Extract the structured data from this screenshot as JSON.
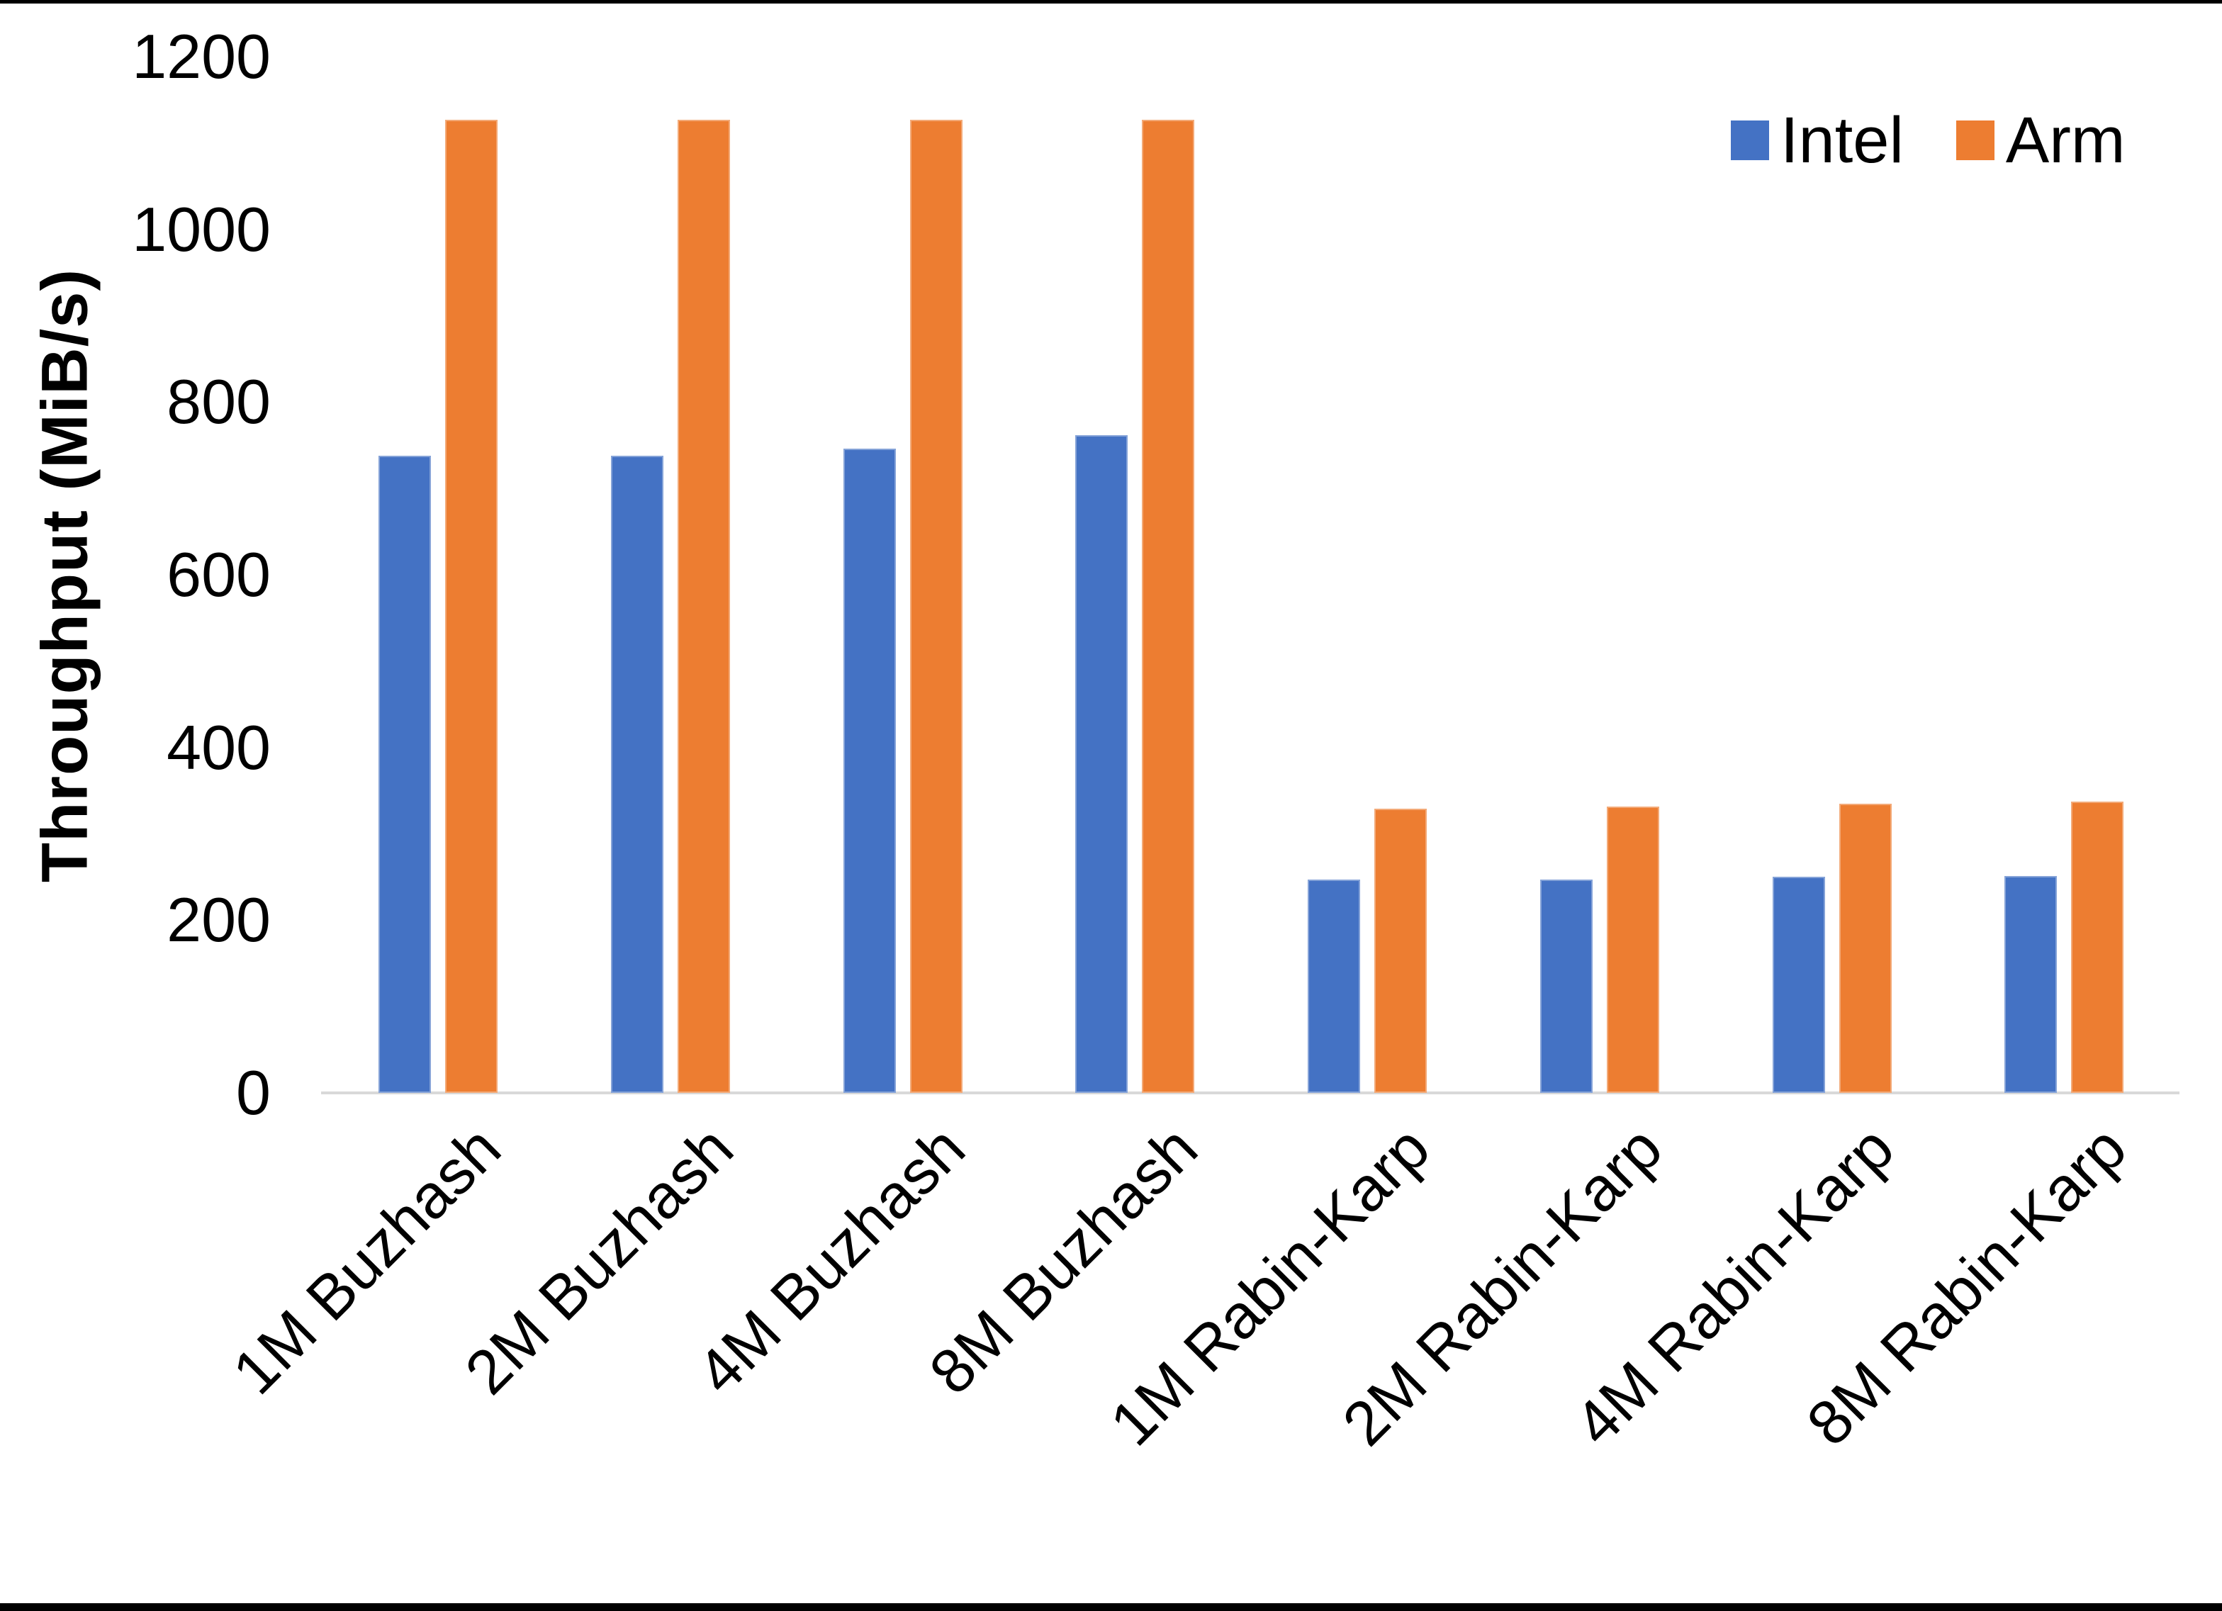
{
  "chart_data": {
    "type": "bar",
    "title": "",
    "xlabel": "",
    "ylabel": "Throughput (MiB/s)",
    "ylim": [
      0,
      1200
    ],
    "yticks": [
      0,
      200,
      400,
      600,
      800,
      1000,
      1200
    ],
    "grid": false,
    "legend_position": "top-right",
    "categories": [
      "1M Buzhash",
      "2M Buzhash",
      "4M Buzhash",
      "8M Buzhash",
      "1M Rabin-Karp",
      "2M Rabin-Karp",
      "4M Rabin-Karp",
      "8M Rabin-Karp"
    ],
    "series": [
      {
        "name": "Intel",
        "color": "#4472C4",
        "values": [
          738,
          738,
          746,
          762,
          247,
          247,
          250,
          251
        ]
      },
      {
        "name": "Arm",
        "color": "#ED7D31",
        "values": [
          1127,
          1127,
          1127,
          1127,
          329,
          332,
          335,
          337
        ]
      }
    ]
  },
  "colors": {
    "axis_line": "#D9D9D9",
    "text": "#000000",
    "intel": "#4472C4",
    "arm": "#ED7D31"
  }
}
